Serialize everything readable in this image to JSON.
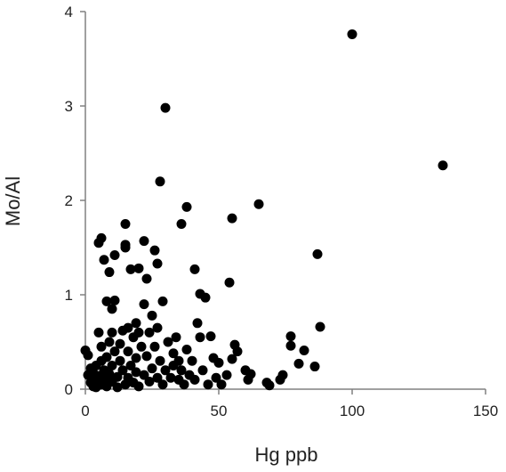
{
  "chart_data": {
    "type": "scatter",
    "title": "",
    "xlabel": "Hg ppb",
    "ylabel": "Mo/Al",
    "xlim": [
      0,
      150
    ],
    "ylim": [
      0,
      4
    ],
    "x_ticks": [
      "0",
      "50",
      "100",
      "150"
    ],
    "y_ticks": [
      "0",
      "1",
      "2",
      "3",
      "4"
    ],
    "grid": false,
    "legend": "none",
    "marker_color": "#000000",
    "axis_color": "#808080",
    "series": [
      {
        "points": [
          [
            0,
            0.41
          ],
          [
            1,
            0.15
          ],
          [
            1,
            0.36
          ],
          [
            2,
            0.07
          ],
          [
            2,
            0.22
          ],
          [
            3,
            0.03
          ],
          [
            3,
            0.12
          ],
          [
            3,
            0.17
          ],
          [
            4,
            0.02
          ],
          [
            4,
            0.08
          ],
          [
            4,
            0.25
          ],
          [
            5,
            0.6
          ],
          [
            5,
            1.55
          ],
          [
            5,
            0.14
          ],
          [
            6,
            0.05
          ],
          [
            6,
            1.6
          ],
          [
            6,
            0.3
          ],
          [
            6,
            0.45
          ],
          [
            7,
            1.37
          ],
          [
            7,
            0.1
          ],
          [
            7,
            0.2
          ],
          [
            8,
            0.93
          ],
          [
            8,
            0.34
          ],
          [
            8,
            0.03
          ],
          [
            9,
            0.16
          ],
          [
            9,
            1.24
          ],
          [
            9,
            0.5
          ],
          [
            10,
            0.85
          ],
          [
            10,
            0.6
          ],
          [
            10,
            0.25
          ],
          [
            10,
            0.08
          ],
          [
            11,
            0.94
          ],
          [
            11,
            1.42
          ],
          [
            11,
            0.4
          ],
          [
            12,
            0.13
          ],
          [
            12,
            0.02
          ],
          [
            13,
            0.3
          ],
          [
            13,
            0.48
          ],
          [
            14,
            0.62
          ],
          [
            14,
            0.2
          ],
          [
            15,
            1.75
          ],
          [
            15,
            1.53
          ],
          [
            15,
            1.5
          ],
          [
            15,
            0.05
          ],
          [
            16,
            0.65
          ],
          [
            16,
            0.4
          ],
          [
            16,
            0.12
          ],
          [
            17,
            1.27
          ],
          [
            17,
            0.25
          ],
          [
            18,
            0.55
          ],
          [
            18,
            0.07
          ],
          [
            19,
            0.7
          ],
          [
            19,
            0.33
          ],
          [
            19,
            0.18
          ],
          [
            20,
            1.28
          ],
          [
            20,
            0.6
          ],
          [
            20,
            0.03
          ],
          [
            21,
            0.45
          ],
          [
            22,
            1.57
          ],
          [
            22,
            0.9
          ],
          [
            22,
            0.15
          ],
          [
            23,
            1.17
          ],
          [
            23,
            0.35
          ],
          [
            24,
            0.6
          ],
          [
            24,
            0.08
          ],
          [
            25,
            0.78
          ],
          [
            25,
            0.22
          ],
          [
            26,
            0.45
          ],
          [
            26,
            1.47
          ],
          [
            27,
            1.33
          ],
          [
            27,
            0.65
          ],
          [
            27,
            0.12
          ],
          [
            28,
            2.2
          ],
          [
            28,
            0.3
          ],
          [
            29,
            0.93
          ],
          [
            29,
            0.05
          ],
          [
            30,
            2.98
          ],
          [
            30,
            0.2
          ],
          [
            31,
            0.5
          ],
          [
            32,
            0.12
          ],
          [
            33,
            0.38
          ],
          [
            33,
            0.25
          ],
          [
            34,
            0.55
          ],
          [
            35,
            0.1
          ],
          [
            35,
            0.3
          ],
          [
            36,
            1.75
          ],
          [
            36,
            0.2
          ],
          [
            37,
            0.05
          ],
          [
            38,
            1.93
          ],
          [
            38,
            0.42
          ],
          [
            39,
            0.15
          ],
          [
            40,
            0.3
          ],
          [
            41,
            1.27
          ],
          [
            41,
            0.1
          ],
          [
            42,
            0.7
          ],
          [
            43,
            1.01
          ],
          [
            43,
            0.55
          ],
          [
            44,
            0.2
          ],
          [
            45,
            0.97
          ],
          [
            46,
            0.05
          ],
          [
            47,
            0.56
          ],
          [
            48,
            0.33
          ],
          [
            49,
            0.12
          ],
          [
            50,
            0.28
          ],
          [
            51,
            0.05
          ],
          [
            53,
            0.15
          ],
          [
            54,
            1.13
          ],
          [
            55,
            1.81
          ],
          [
            55,
            0.32
          ],
          [
            56,
            0.47
          ],
          [
            57,
            0.4
          ],
          [
            60,
            0.2
          ],
          [
            61,
            0.1
          ],
          [
            62,
            0.16
          ],
          [
            65,
            1.96
          ],
          [
            68,
            0.07
          ],
          [
            69,
            0.04
          ],
          [
            73,
            0.1
          ],
          [
            74,
            0.15
          ],
          [
            77,
            0.56
          ],
          [
            77,
            0.46
          ],
          [
            80,
            0.27
          ],
          [
            82,
            0.41
          ],
          [
            86,
            0.24
          ],
          [
            87,
            1.43
          ],
          [
            88,
            0.66
          ],
          [
            100,
            3.76
          ],
          [
            134,
            2.37
          ]
        ]
      }
    ]
  }
}
